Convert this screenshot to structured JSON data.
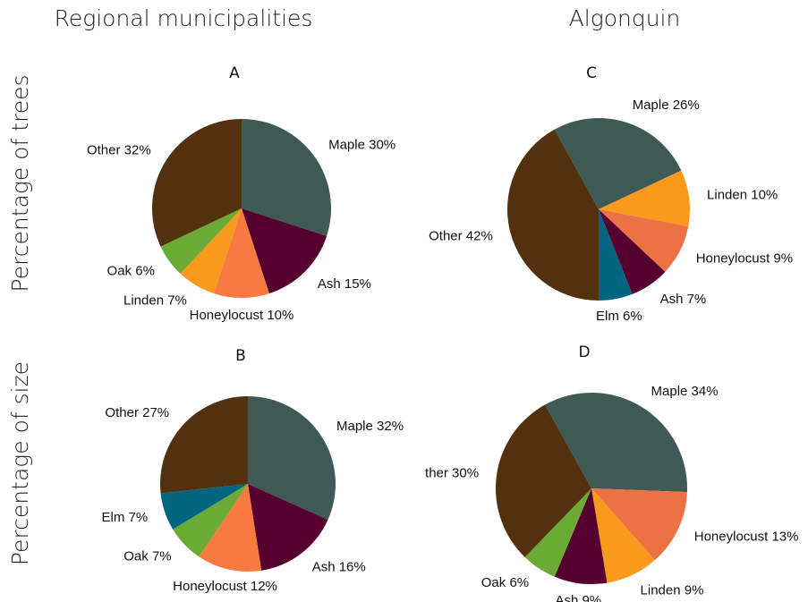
{
  "figure": {
    "columns": [
      "Regional municipalities",
      "Algonquin"
    ],
    "rows": [
      "Percentage of trees",
      "Percentage of size"
    ]
  },
  "chart_data": [
    {
      "type": "pie",
      "title": "A",
      "start_angle": 0,
      "categories": [
        "Maple 30%",
        "Ash 15%",
        "Honeylocust 10%",
        "Linden 7%",
        "Oak 6%",
        "Other 32%"
      ],
      "values": [
        30,
        15,
        10,
        7,
        6,
        32
      ],
      "colors": [
        "#3f5a55",
        "#560030",
        "#f97a41",
        "#f99a1c",
        "#6aaa35",
        "#52320e"
      ]
    },
    {
      "type": "pie",
      "title": "B",
      "start_angle": 0,
      "categories": [
        "Maple 32%",
        "Ash 16%",
        "Honeylocust 12%",
        "Oak 7%",
        "Elm 7%",
        "Other 27%"
      ],
      "values": [
        32,
        16,
        12,
        7,
        7,
        27
      ],
      "colors": [
        "#3f5a55",
        "#560030",
        "#f97a41",
        "#6aaa35",
        "#006680",
        "#52320e"
      ]
    },
    {
      "type": "pie",
      "title": "C",
      "start_angle": 180,
      "categories": [
        "Other 42%",
        "Maple 26%",
        "Linden 10%",
        "Honeylocust 9%",
        "Ash 7%",
        "Elm 6%"
      ],
      "values": [
        42,
        26,
        10,
        9,
        7,
        6
      ],
      "colors": [
        "#52320e",
        "#3f5a55",
        "#f99a1c",
        "#ec7244",
        "#560030",
        "#006680"
      ]
    },
    {
      "type": "pie",
      "title": "D",
      "start_angle": 331,
      "categories": [
        "Maple 34%",
        "Honeylocust 13%",
        "Linden 9%",
        "Ash 9%",
        "Oak 6%",
        "ther 30%"
      ],
      "values": [
        34,
        13,
        9,
        9,
        6,
        30
      ],
      "colors": [
        "#3f5a55",
        "#ec7244",
        "#f99a1c",
        "#560030",
        "#6aaa35",
        "#52320e"
      ]
    }
  ]
}
